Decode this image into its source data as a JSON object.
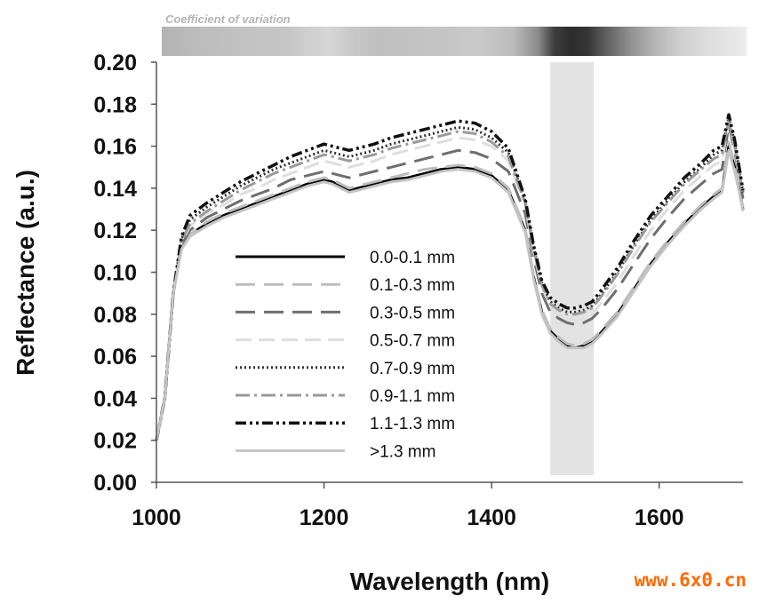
{
  "chart_data": {
    "type": "line",
    "title": "",
    "xlabel": "Wavelength (nm)",
    "ylabel": "Reflectance (a.u.)",
    "xlim": [
      1000,
      1700
    ],
    "ylim": [
      0,
      0.2
    ],
    "xticks": [
      1000,
      1200,
      1400,
      1600
    ],
    "xtick_labels": [
      "1000",
      "1200",
      "1400",
      "1600"
    ],
    "yticks": [
      0,
      0.02,
      0.04,
      0.06,
      0.08,
      0.1,
      0.12,
      0.14,
      0.16,
      0.18,
      0.2
    ],
    "ytick_labels": [
      "0.00",
      "0.02",
      "0.04",
      "0.06",
      "0.08",
      "0.10",
      "0.12",
      "0.14",
      "0.16",
      "0.18",
      "0.20"
    ],
    "grid": false,
    "legend_position": "center-left",
    "highlight_band": {
      "x_start": 1470,
      "x_end": 1522,
      "color": "#e3e3e3"
    },
    "cv_bar": {
      "label": "Coefficient of variation",
      "x": [
        1000,
        1050,
        1100,
        1150,
        1175,
        1200,
        1230,
        1260,
        1300,
        1340,
        1380,
        1420,
        1450,
        1470,
        1490,
        1510,
        1530,
        1560,
        1590,
        1620,
        1650,
        1680,
        1700
      ],
      "shade": [
        "#b3b3b3",
        "#bdbdbd",
        "#c2c2c2",
        "#c6c6c6",
        "#cfcfcf",
        "#d6d6d6",
        "#c7c7c7",
        "#c0c0c0",
        "#c2c2c2",
        "#c5c5c5",
        "#cacaca",
        "#bcbcbc",
        "#8c8c8c",
        "#3d3d3d",
        "#2c2c2c",
        "#353535",
        "#5c5c5c",
        "#8f8f8f",
        "#b5b5b5",
        "#cfcfcf",
        "#dcdcdc",
        "#e6e6e6",
        "#ededed"
      ]
    },
    "x": [
      1000,
      1010,
      1020,
      1030,
      1040,
      1060,
      1080,
      1100,
      1120,
      1140,
      1160,
      1180,
      1200,
      1210,
      1220,
      1230,
      1240,
      1260,
      1280,
      1300,
      1320,
      1340,
      1360,
      1380,
      1400,
      1420,
      1440,
      1450,
      1460,
      1470,
      1480,
      1490,
      1500,
      1510,
      1520,
      1530,
      1550,
      1570,
      1590,
      1610,
      1630,
      1650,
      1665,
      1675,
      1683,
      1690,
      1695,
      1700
    ],
    "series": [
      {
        "name": "0.0-0.1 mm",
        "color": "#000000",
        "dash": "",
        "width": 3,
        "values": [
          0.02,
          0.04,
          0.09,
          0.112,
          0.118,
          0.123,
          0.127,
          0.13,
          0.133,
          0.136,
          0.139,
          0.142,
          0.144,
          0.143,
          0.141,
          0.139,
          0.14,
          0.142,
          0.144,
          0.145,
          0.147,
          0.149,
          0.15,
          0.149,
          0.146,
          0.139,
          0.12,
          0.098,
          0.081,
          0.072,
          0.068,
          0.065,
          0.064,
          0.065,
          0.067,
          0.071,
          0.08,
          0.092,
          0.104,
          0.114,
          0.123,
          0.131,
          0.136,
          0.139,
          0.16,
          0.15,
          0.14,
          0.13
        ]
      },
      {
        "name": "0.1-0.3 mm",
        "color": "#bdbdbd",
        "dash": "22 10",
        "width": 3,
        "values": [
          0.02,
          0.04,
          0.09,
          0.112,
          0.118,
          0.124,
          0.128,
          0.131,
          0.134,
          0.137,
          0.14,
          0.143,
          0.145,
          0.144,
          0.142,
          0.14,
          0.141,
          0.143,
          0.145,
          0.147,
          0.149,
          0.15,
          0.151,
          0.15,
          0.147,
          0.14,
          0.121,
          0.099,
          0.082,
          0.073,
          0.069,
          0.066,
          0.065,
          0.066,
          0.068,
          0.072,
          0.081,
          0.093,
          0.105,
          0.115,
          0.124,
          0.132,
          0.137,
          0.14,
          0.162,
          0.151,
          0.141,
          0.131
        ]
      },
      {
        "name": "0.3-0.5 mm",
        "color": "#6e6e6e",
        "dash": "22 10",
        "width": 3,
        "values": [
          0.02,
          0.04,
          0.09,
          0.113,
          0.12,
          0.126,
          0.13,
          0.134,
          0.137,
          0.14,
          0.144,
          0.146,
          0.148,
          0.147,
          0.146,
          0.145,
          0.146,
          0.148,
          0.15,
          0.152,
          0.154,
          0.156,
          0.158,
          0.157,
          0.154,
          0.148,
          0.128,
          0.107,
          0.09,
          0.081,
          0.078,
          0.076,
          0.075,
          0.076,
          0.078,
          0.082,
          0.092,
          0.104,
          0.116,
          0.126,
          0.135,
          0.142,
          0.147,
          0.149,
          0.17,
          0.158,
          0.146,
          0.135
        ]
      },
      {
        "name": "0.5-0.7 mm",
        "color": "#dedede",
        "dash": "18 8",
        "width": 3,
        "values": [
          0.02,
          0.04,
          0.09,
          0.114,
          0.122,
          0.128,
          0.132,
          0.137,
          0.14,
          0.144,
          0.147,
          0.15,
          0.153,
          0.152,
          0.151,
          0.15,
          0.151,
          0.153,
          0.156,
          0.158,
          0.16,
          0.162,
          0.164,
          0.163,
          0.16,
          0.153,
          0.132,
          0.11,
          0.093,
          0.084,
          0.08,
          0.078,
          0.077,
          0.078,
          0.08,
          0.085,
          0.095,
          0.108,
          0.12,
          0.13,
          0.139,
          0.146,
          0.151,
          0.153,
          0.172,
          0.16,
          0.148,
          0.137
        ]
      },
      {
        "name": "0.7-0.9 mm",
        "color": "#333333",
        "dash": "2 3",
        "width": 3,
        "values": [
          0.02,
          0.04,
          0.09,
          0.116,
          0.125,
          0.131,
          0.136,
          0.141,
          0.145,
          0.149,
          0.152,
          0.155,
          0.158,
          0.157,
          0.156,
          0.155,
          0.156,
          0.158,
          0.161,
          0.163,
          0.165,
          0.167,
          0.169,
          0.168,
          0.164,
          0.157,
          0.134,
          0.112,
          0.095,
          0.086,
          0.083,
          0.081,
          0.081,
          0.082,
          0.084,
          0.089,
          0.1,
          0.113,
          0.125,
          0.134,
          0.143,
          0.15,
          0.156,
          0.158,
          0.174,
          0.162,
          0.15,
          0.138
        ]
      },
      {
        "name": "0.9-1.1 mm",
        "color": "#9a9a9a",
        "dash": "16 5 3 5",
        "width": 3,
        "values": [
          0.02,
          0.04,
          0.09,
          0.115,
          0.123,
          0.129,
          0.134,
          0.139,
          0.143,
          0.147,
          0.15,
          0.153,
          0.156,
          0.155,
          0.154,
          0.153,
          0.154,
          0.156,
          0.159,
          0.161,
          0.163,
          0.165,
          0.167,
          0.166,
          0.162,
          0.155,
          0.133,
          0.111,
          0.094,
          0.085,
          0.082,
          0.08,
          0.08,
          0.081,
          0.083,
          0.088,
          0.099,
          0.112,
          0.124,
          0.133,
          0.142,
          0.149,
          0.154,
          0.156,
          0.172,
          0.16,
          0.149,
          0.137
        ]
      },
      {
        "name": "1.1-1.3 mm",
        "color": "#111111",
        "dash": "12 4 3 4 3 4",
        "width": 3.5,
        "values": [
          0.02,
          0.04,
          0.09,
          0.117,
          0.127,
          0.133,
          0.138,
          0.143,
          0.147,
          0.151,
          0.155,
          0.158,
          0.161,
          0.16,
          0.159,
          0.158,
          0.159,
          0.161,
          0.164,
          0.166,
          0.168,
          0.17,
          0.172,
          0.171,
          0.167,
          0.159,
          0.135,
          0.113,
          0.096,
          0.088,
          0.085,
          0.083,
          0.083,
          0.084,
          0.086,
          0.091,
          0.102,
          0.115,
          0.127,
          0.136,
          0.145,
          0.152,
          0.158,
          0.16,
          0.175,
          0.163,
          0.151,
          0.139
        ]
      },
      {
        "name": ">1.3 mm",
        "color": "#c4c4c4",
        "dash": "",
        "width": 3,
        "values": [
          0.02,
          0.04,
          0.09,
          0.111,
          0.117,
          0.122,
          0.126,
          0.129,
          0.132,
          0.135,
          0.138,
          0.141,
          0.143,
          0.142,
          0.14,
          0.138,
          0.139,
          0.141,
          0.143,
          0.144,
          0.146,
          0.148,
          0.149,
          0.148,
          0.145,
          0.138,
          0.119,
          0.097,
          0.08,
          0.071,
          0.067,
          0.064,
          0.064,
          0.064,
          0.066,
          0.07,
          0.079,
          0.091,
          0.103,
          0.113,
          0.122,
          0.13,
          0.135,
          0.138,
          0.158,
          0.148,
          0.139,
          0.129
        ]
      }
    ]
  },
  "watermark": "www.6x0.cn"
}
